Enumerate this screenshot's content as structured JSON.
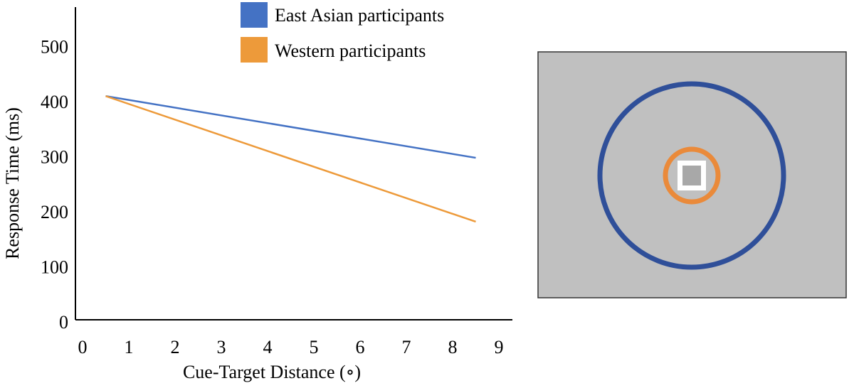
{
  "chart_data": {
    "type": "line",
    "title": "",
    "xlabel": "Cue-Target Distance (∘)",
    "ylabel": "Response Time (ms)",
    "xlim": [
      0,
      9.5
    ],
    "ylim": [
      0,
      560
    ],
    "x_ticks": [
      0,
      1,
      2,
      3,
      4,
      5,
      6,
      7,
      8,
      9
    ],
    "y_ticks": [
      0,
      100,
      200,
      300,
      400,
      500
    ],
    "grid": false,
    "legend_position": "top",
    "series": [
      {
        "name": "East Asian participants",
        "color": "#4472c4",
        "x": [
          0.5,
          8.5
        ],
        "y": [
          410,
          298
        ]
      },
      {
        "name": "Western participants",
        "color": "#ed9a3a",
        "x": [
          0.5,
          8.5
        ],
        "y": [
          410,
          182
        ]
      }
    ]
  },
  "stimulus": {
    "background_color": "#c0c0c0",
    "border_color": "#333333",
    "outer_ring_color": "#2f4f99",
    "inner_ring_color": "#ea8a3a",
    "square_color": "#ffffff",
    "square_center_color": "#a8a8a8"
  }
}
